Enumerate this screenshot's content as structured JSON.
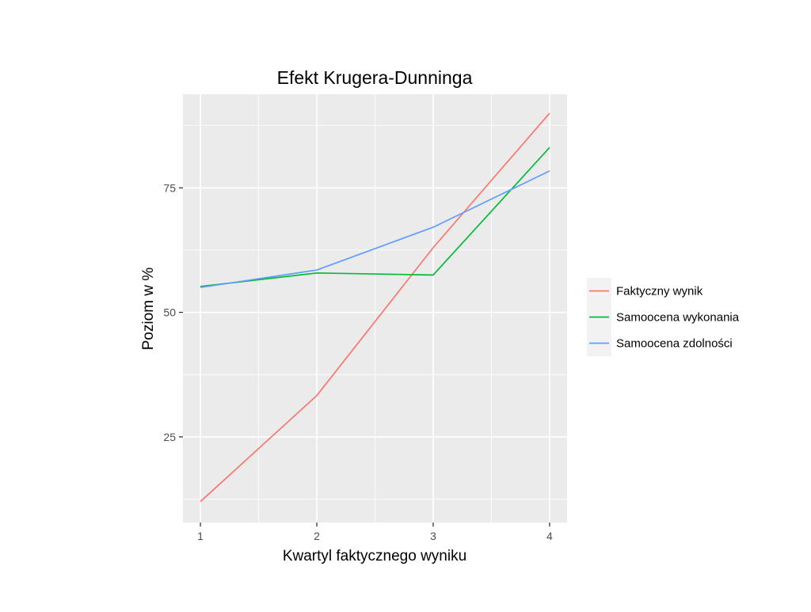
{
  "chart_data": {
    "type": "line",
    "title": "Efekt Krugera-Dunninga",
    "xlabel": "Kwartyl faktycznego wyniku",
    "ylabel": "Poziom w %",
    "x": [
      1,
      2,
      3,
      4
    ],
    "x_ticks": [
      "1",
      "2",
      "3",
      "4"
    ],
    "xlim": [
      0.85,
      4.15
    ],
    "y_ticks": [
      25,
      50,
      75
    ],
    "y_tick_labels": [
      "25",
      "50",
      "75"
    ],
    "ylim": [
      7.8,
      93.8
    ],
    "grid": true,
    "legend_position": "right",
    "series": [
      {
        "name": "Faktyczny wynik",
        "color": "#F8766D",
        "values": [
          12,
          33.3,
          63,
          90
        ]
      },
      {
        "name": "Samoocena wykonania",
        "color": "#00BA38",
        "values": [
          55.2,
          57.9,
          57.5,
          83.1
        ]
      },
      {
        "name": "Samoocena zdolności",
        "color": "#619CFF",
        "values": [
          55,
          58.5,
          67.1,
          78.4
        ]
      }
    ]
  }
}
